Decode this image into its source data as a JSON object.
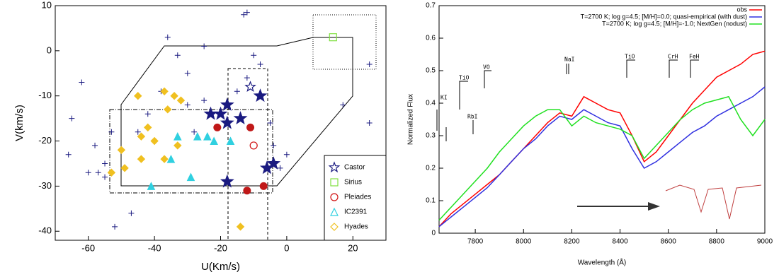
{
  "chart_data": [
    {
      "type": "scatter",
      "xlabel": "U(Km/s)",
      "ylabel": "V(km/s)",
      "xlim": [
        -70,
        30
      ],
      "ylim": [
        -42,
        10
      ],
      "xticks": [
        -60,
        -40,
        -20,
        0,
        20
      ],
      "yticks": [
        -40,
        -30,
        -20,
        -10,
        0,
        10
      ],
      "legend": "lower right",
      "series": [
        {
          "color": "#1a1a80",
          "marker": "plus",
          "x": [
            -62,
            -65,
            -66,
            -60,
            -57,
            -55,
            -52,
            -47,
            -36,
            -33,
            -25,
            -30,
            -38,
            -30,
            -42,
            -45,
            -53,
            -58,
            -55,
            -13,
            -12,
            -10,
            -8,
            -12,
            -15,
            -5,
            -4,
            -2,
            0,
            17,
            25,
            25,
            -20,
            -25,
            -28
          ],
          "y": [
            -7,
            -15,
            -23,
            -27,
            -27,
            -28,
            -39,
            -36,
            3,
            -1,
            1,
            -5,
            -9,
            -12,
            -14,
            -18,
            -18,
            -21,
            -25,
            8,
            8.5,
            -1,
            -3,
            -6,
            -9,
            -16,
            -21,
            -26,
            -23,
            -12,
            -3,
            -16,
            -14,
            -11,
            -18
          ]
        },
        {
          "name": "Castor",
          "color": "#1a1a80",
          "marker": "star",
          "open": true,
          "x": [
            -11
          ],
          "y": [
            -8
          ]
        },
        {
          "color": "#1a1a80",
          "marker": "star",
          "x": [
            -18,
            -20,
            -18,
            -23,
            -14,
            -8,
            -6,
            -4,
            -18
          ],
          "y": [
            -12,
            -14,
            -16,
            -14,
            -15,
            -10,
            -26,
            -25,
            -29
          ]
        },
        {
          "name": "Sirius",
          "color": "#80e040",
          "marker": "square",
          "open": true,
          "x": [
            14
          ],
          "y": [
            3
          ]
        },
        {
          "name": "Pleiades",
          "color": "#d01010",
          "marker": "circle",
          "open": true,
          "x": [
            -10
          ],
          "y": [
            -21
          ]
        },
        {
          "color": "#c01818",
          "marker": "circle",
          "x": [
            -11,
            -21,
            -12,
            -7
          ],
          "y": [
            -17,
            -17,
            -31,
            -30
          ]
        },
        {
          "name": "IC2391",
          "color": "#30d0e0",
          "marker": "triangle",
          "x": [
            -27,
            -24,
            -22,
            -17,
            -41,
            -29,
            -35,
            -33
          ],
          "y": [
            -19,
            -19,
            -20,
            -20,
            -30,
            -28,
            -24,
            -19
          ]
        },
        {
          "name": "Hyades",
          "color": "#f0c020",
          "marker": "diamond",
          "x": [
            -45,
            -37,
            -34,
            -32,
            -36,
            -42,
            -44,
            -40,
            -50,
            -49,
            -53,
            -33,
            -37,
            -44,
            -14
          ],
          "y": [
            -10,
            -9,
            -10,
            -11,
            -13,
            -17,
            -19,
            -20,
            -22,
            -26,
            -27,
            -21,
            -24,
            -24,
            -39
          ]
        }
      ]
    },
    {
      "type": "line",
      "xlabel": "Wavelength (Å)",
      "ylabel": "Normalized Flux",
      "xlim": [
        7650,
        9000
      ],
      "ylim": [
        0,
        0.7
      ],
      "xticks": [
        7800,
        8000,
        8200,
        8400,
        8600,
        8800,
        9000
      ],
      "yticks": [
        0,
        0.1,
        0.2,
        0.3,
        0.4,
        0.5,
        0.6,
        0.7
      ],
      "legend": "upper right",
      "x": [
        7650,
        7700,
        7750,
        7800,
        7850,
        7900,
        7950,
        8000,
        8050,
        8100,
        8150,
        8200,
        8250,
        8300,
        8350,
        8400,
        8450,
        8500,
        8550,
        8600,
        8650,
        8700,
        8750,
        8800,
        8850,
        8900,
        8950,
        9000
      ],
      "series": [
        {
          "name": "obs",
          "color": "#ff0000",
          "values": [
            0.02,
            0.06,
            0.09,
            0.12,
            0.15,
            0.18,
            0.22,
            0.26,
            0.3,
            0.34,
            0.37,
            0.36,
            0.42,
            0.4,
            0.38,
            0.37,
            0.3,
            0.22,
            0.25,
            0.3,
            0.35,
            0.4,
            0.44,
            0.48,
            0.5,
            0.52,
            0.55,
            0.56
          ]
        },
        {
          "name": "T=2700 K; log g=4.5; [M/H]=0.0; quasi-empirical (with dust)",
          "color": "#3030e0",
          "values": [
            0.02,
            0.05,
            0.08,
            0.11,
            0.14,
            0.18,
            0.22,
            0.26,
            0.29,
            0.33,
            0.36,
            0.35,
            0.38,
            0.36,
            0.34,
            0.33,
            0.26,
            0.2,
            0.22,
            0.25,
            0.28,
            0.31,
            0.33,
            0.36,
            0.38,
            0.4,
            0.42,
            0.45
          ]
        },
        {
          "name": "T=2700 K; log g=4.5; [M/H]=-1.0; NextGen (nodust)",
          "color": "#20e020",
          "values": [
            0.04,
            0.08,
            0.12,
            0.16,
            0.2,
            0.25,
            0.29,
            0.33,
            0.36,
            0.38,
            0.38,
            0.33,
            0.36,
            0.34,
            0.33,
            0.32,
            0.3,
            0.23,
            0.27,
            0.31,
            0.35,
            0.38,
            0.4,
            0.41,
            0.42,
            0.35,
            0.3,
            0.35
          ]
        }
      ],
      "annotations": [
        "KI",
        "TiO",
        "RbI",
        "VO",
        "NaI",
        "TiO",
        "CrH",
        "FeH"
      ]
    }
  ]
}
